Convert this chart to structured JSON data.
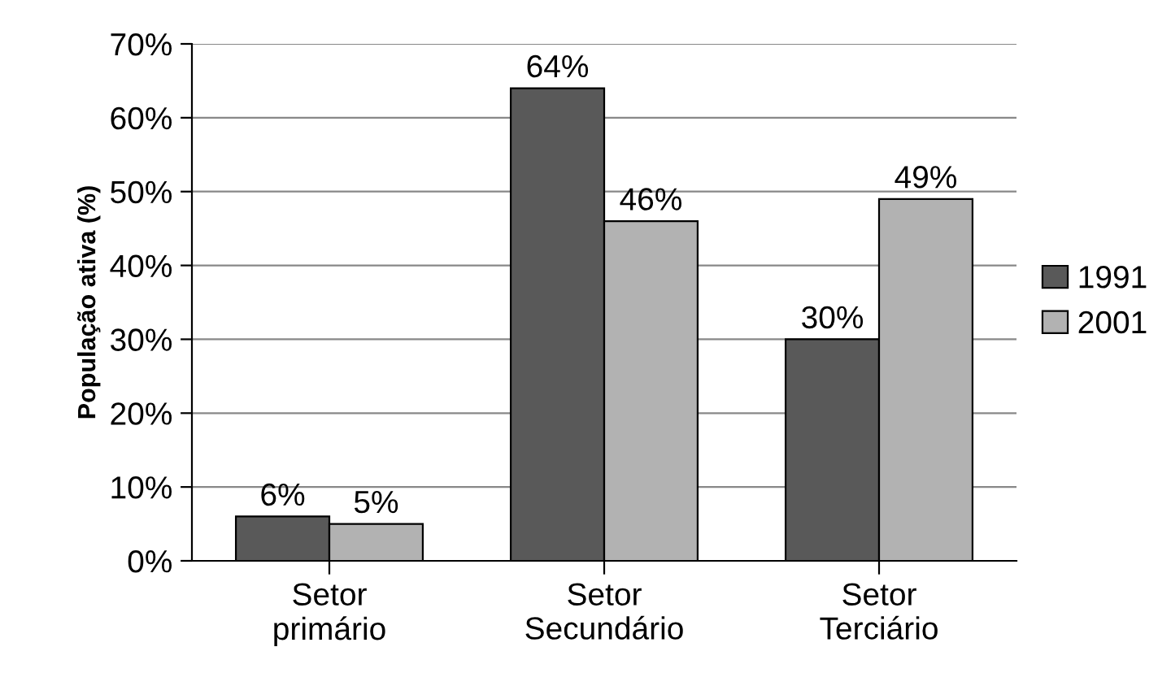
{
  "chart_data": {
    "type": "bar",
    "ylabel": "População ativa (%)",
    "categories": [
      "Setor\nprimário",
      "Setor\nSecundário",
      "Setor\nTerciário"
    ],
    "series": [
      {
        "name": "1991",
        "color": "#595959",
        "values": [
          6,
          64,
          30
        ],
        "value_labels": [
          "6%",
          "64%",
          "30%"
        ]
      },
      {
        "name": "2001",
        "color": "#b2b2b2",
        "values": [
          5,
          46,
          49
        ],
        "value_labels": [
          "5%",
          "46%",
          "49%"
        ]
      }
    ],
    "ylim": [
      0,
      70
    ],
    "yticks": [
      {
        "value": 0,
        "label": "0%"
      },
      {
        "value": 10,
        "label": "10%"
      },
      {
        "value": 20,
        "label": "20%"
      },
      {
        "value": 30,
        "label": "30%"
      },
      {
        "value": 40,
        "label": "40%"
      },
      {
        "value": 50,
        "label": "50%"
      },
      {
        "value": 60,
        "label": "60%"
      },
      {
        "value": 70,
        "label": "70%"
      }
    ],
    "grid": "y",
    "legend": "right"
  }
}
